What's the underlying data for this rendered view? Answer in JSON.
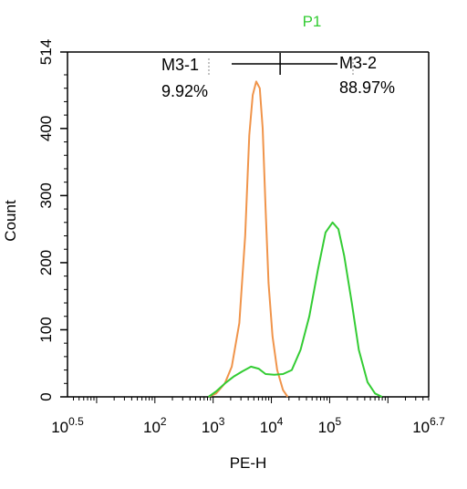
{
  "chart_data": {
    "type": "line",
    "title": "P1",
    "title_color": "#33cc33",
    "xlabel": "PE-H",
    "ylabel": "Count",
    "x_scale": "log",
    "xlim": [
      0.5,
      6.7
    ],
    "ylim": [
      0,
      514
    ],
    "x_ticks": [
      {
        "exp": 0.5,
        "base": "10",
        "sup": "0.5"
      },
      {
        "exp": 2,
        "base": "10",
        "sup": "2"
      },
      {
        "exp": 3,
        "base": "10",
        "sup": "3"
      },
      {
        "exp": 4,
        "base": "10",
        "sup": "4"
      },
      {
        "exp": 5,
        "base": "10",
        "sup": "5"
      },
      {
        "exp": 6.7,
        "base": "10",
        "sup": "6.7"
      }
    ],
    "y_ticks": [
      "0",
      "100",
      "200",
      "300",
      "400",
      "514"
    ],
    "y_tick_values": [
      0,
      100,
      200,
      300,
      400,
      514
    ],
    "gates": [
      {
        "name": "M3-1",
        "percent": "9.92%",
        "range_log10": [
          2.8,
          4.15
        ]
      },
      {
        "name": "M3-2",
        "percent": "88.97%",
        "range_log10": [
          4.15,
          5.5
        ]
      }
    ],
    "series": [
      {
        "color": "#f0944a",
        "points": [
          [
            2.92,
            0
          ],
          [
            3.05,
            5
          ],
          [
            3.2,
            20
          ],
          [
            3.32,
            45
          ],
          [
            3.45,
            110
          ],
          [
            3.55,
            240
          ],
          [
            3.62,
            390
          ],
          [
            3.68,
            450
          ],
          [
            3.74,
            470
          ],
          [
            3.8,
            460
          ],
          [
            3.85,
            400
          ],
          [
            3.9,
            280
          ],
          [
            3.95,
            170
          ],
          [
            4.02,
            90
          ],
          [
            4.1,
            40
          ],
          [
            4.2,
            10
          ],
          [
            4.28,
            0
          ]
        ]
      },
      {
        "color": "#33cc33",
        "points": [
          [
            2.92,
            0
          ],
          [
            3.05,
            8
          ],
          [
            3.2,
            20
          ],
          [
            3.35,
            30
          ],
          [
            3.5,
            38
          ],
          [
            3.65,
            45
          ],
          [
            3.78,
            42
          ],
          [
            3.9,
            34
          ],
          [
            4.05,
            33
          ],
          [
            4.2,
            34
          ],
          [
            4.35,
            40
          ],
          [
            4.5,
            70
          ],
          [
            4.65,
            120
          ],
          [
            4.8,
            190
          ],
          [
            4.93,
            245
          ],
          [
            5.05,
            260
          ],
          [
            5.15,
            250
          ],
          [
            5.25,
            210
          ],
          [
            5.38,
            140
          ],
          [
            5.5,
            70
          ],
          [
            5.65,
            22
          ],
          [
            5.78,
            5
          ],
          [
            5.9,
            0
          ]
        ]
      }
    ]
  }
}
